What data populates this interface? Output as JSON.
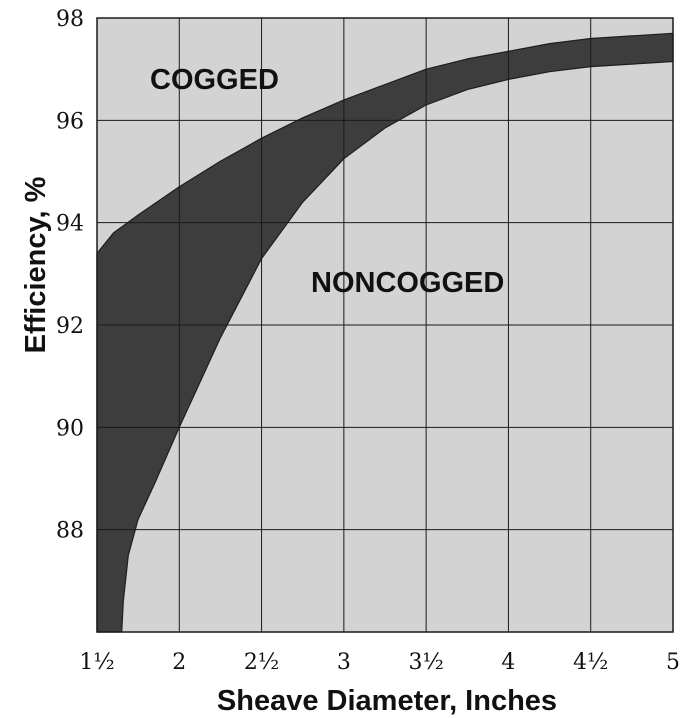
{
  "chart_data": {
    "type": "area",
    "title": "",
    "xlabel": "Sheave Diameter, Inches",
    "ylabel": "Efficiency, %",
    "xlim": [
      1.5,
      5
    ],
    "ylim": [
      86,
      98
    ],
    "x_ticks": [
      {
        "value": 1.5,
        "label": "1½"
      },
      {
        "value": 2,
        "label": "2"
      },
      {
        "value": 2.5,
        "label": "2½"
      },
      {
        "value": 3,
        "label": "3"
      },
      {
        "value": 3.5,
        "label": "3½"
      },
      {
        "value": 4,
        "label": "4"
      },
      {
        "value": 4.5,
        "label": "4½"
      },
      {
        "value": 5,
        "label": "5"
      }
    ],
    "y_ticks": [
      {
        "value": 88,
        "label": "88"
      },
      {
        "value": 90,
        "label": "90"
      },
      {
        "value": 92,
        "label": "92"
      },
      {
        "value": 94,
        "label": "94"
      },
      {
        "value": 96,
        "label": "96"
      },
      {
        "value": 98,
        "label": "98"
      }
    ],
    "grid": true,
    "band": {
      "upper_label": "COGGED",
      "lower_label": "NONCOGGED",
      "upper": [
        {
          "x": 1.5,
          "y": 93.4
        },
        {
          "x": 1.6,
          "y": 93.8
        },
        {
          "x": 1.75,
          "y": 94.15
        },
        {
          "x": 2.0,
          "y": 94.7
        },
        {
          "x": 2.25,
          "y": 95.2
        },
        {
          "x": 2.5,
          "y": 95.65
        },
        {
          "x": 2.75,
          "y": 96.05
        },
        {
          "x": 3.0,
          "y": 96.4
        },
        {
          "x": 3.25,
          "y": 96.7
        },
        {
          "x": 3.5,
          "y": 97.0
        },
        {
          "x": 3.75,
          "y": 97.2
        },
        {
          "x": 4.0,
          "y": 97.35
        },
        {
          "x": 4.25,
          "y": 97.5
        },
        {
          "x": 4.5,
          "y": 97.6
        },
        {
          "x": 4.75,
          "y": 97.65
        },
        {
          "x": 5.0,
          "y": 97.7
        }
      ],
      "lower": [
        {
          "x": 1.65,
          "y": 86.0
        },
        {
          "x": 1.66,
          "y": 86.6
        },
        {
          "x": 1.69,
          "y": 87.5
        },
        {
          "x": 1.75,
          "y": 88.2
        },
        {
          "x": 1.85,
          "y": 88.9
        },
        {
          "x": 2.0,
          "y": 90.0
        },
        {
          "x": 2.25,
          "y": 91.75
        },
        {
          "x": 2.5,
          "y": 93.3
        },
        {
          "x": 2.75,
          "y": 94.4
        },
        {
          "x": 3.0,
          "y": 95.25
        },
        {
          "x": 3.25,
          "y": 95.85
        },
        {
          "x": 3.5,
          "y": 96.3
        },
        {
          "x": 3.75,
          "y": 96.6
        },
        {
          "x": 4.0,
          "y": 96.8
        },
        {
          "x": 4.25,
          "y": 96.95
        },
        {
          "x": 4.5,
          "y": 97.05
        },
        {
          "x": 4.75,
          "y": 97.1
        },
        {
          "x": 5.0,
          "y": 97.15
        }
      ]
    },
    "colors": {
      "plot_background": "#d3d3d3",
      "band_fill": "#3d3d3d",
      "grid_line": "#1a1a1a",
      "text": "#111111"
    }
  }
}
